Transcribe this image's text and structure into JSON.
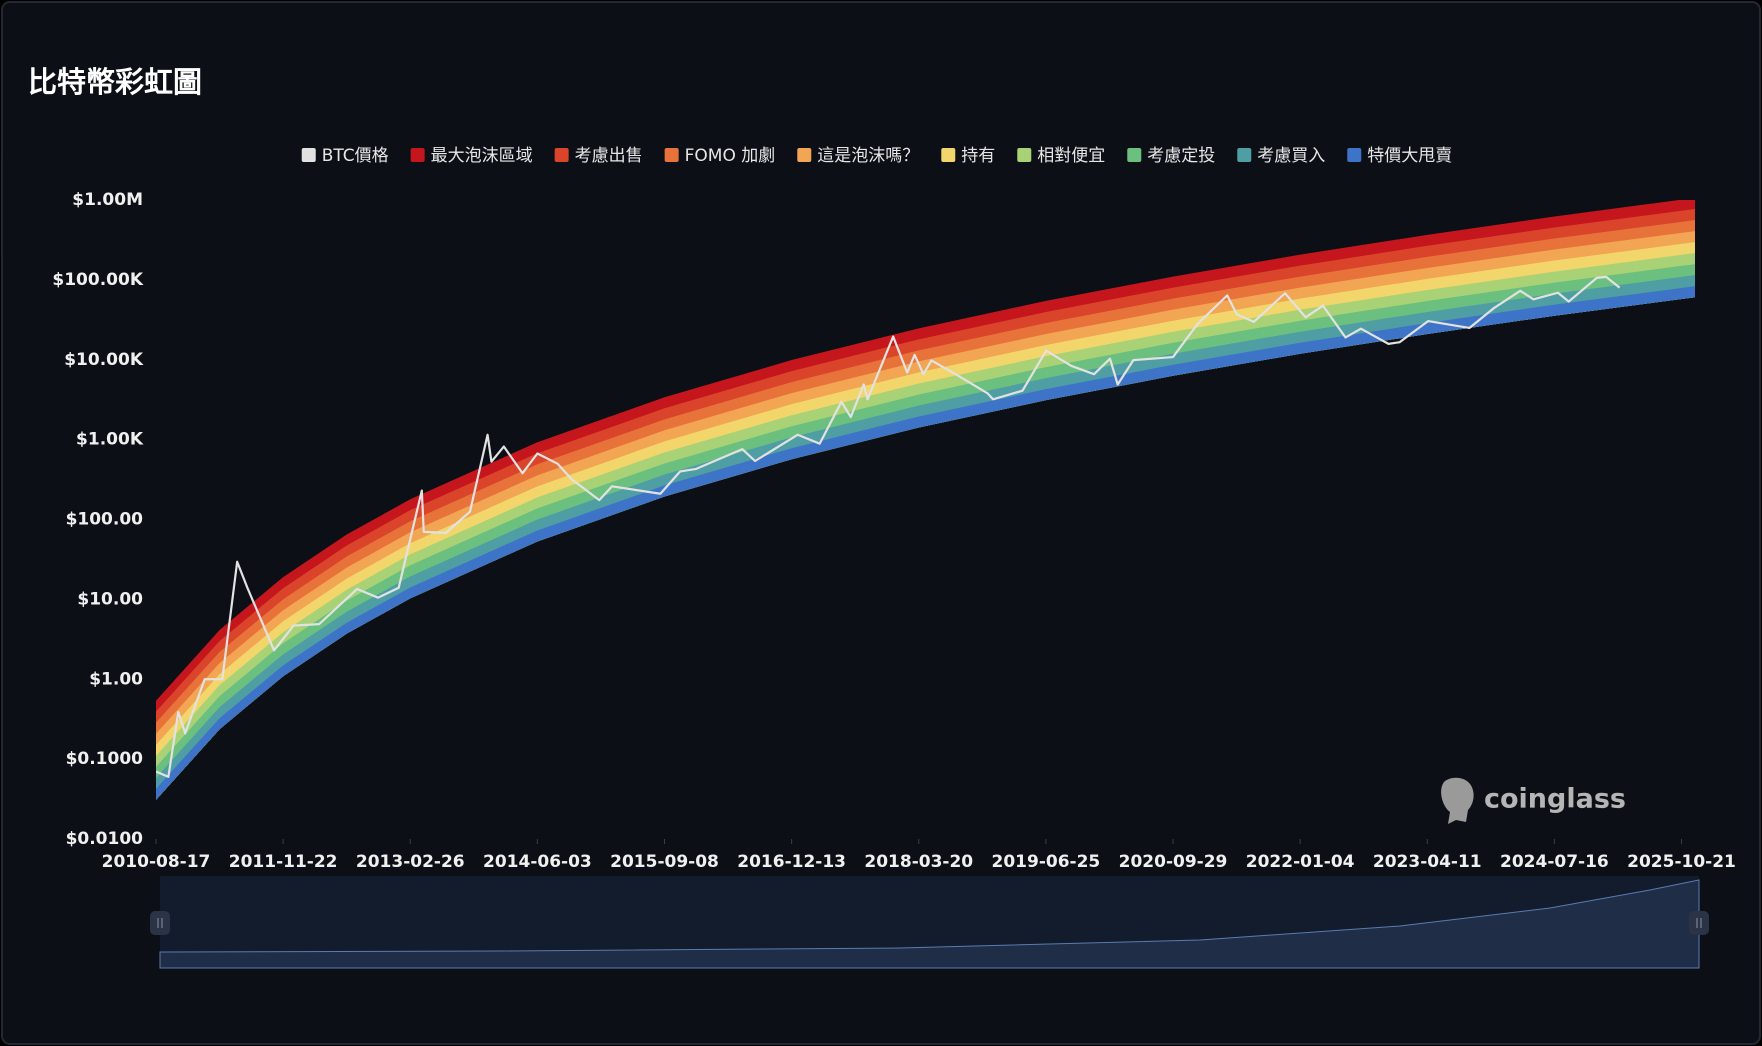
{
  "chart_data": {
    "type": "rainbow",
    "title": "比特幣彩虹圖",
    "watermark": "coinglass",
    "log_y": true,
    "grid": false,
    "legend": "top",
    "xlim": [
      "2010-08-17",
      "2025-12-09"
    ],
    "xticks": [
      "2010-08-17",
      "2011-11-22",
      "2013-02-26",
      "2014-06-03",
      "2015-09-08",
      "2016-12-13",
      "2018-03-20",
      "2019-06-25",
      "2020-09-29",
      "2022-01-04",
      "2023-04-11",
      "2024-07-16",
      "2025-10-21"
    ],
    "ylim": [
      0.01,
      1000000
    ],
    "yticks": [
      {
        "value": 1000000,
        "label": "$1.00M"
      },
      {
        "value": 100000,
        "label": "$100.00K"
      },
      {
        "value": 10000,
        "label": "$10.00K"
      },
      {
        "value": 1000,
        "label": "$1.00K"
      },
      {
        "value": 100,
        "label": "$100.00"
      },
      {
        "value": 10,
        "label": "$10.00"
      },
      {
        "value": 1,
        "label": "$1.00"
      },
      {
        "value": 0.1,
        "label": "$0.1000"
      },
      {
        "value": 0.01,
        "label": "$0.0100"
      }
    ],
    "x": [
      "2010-08-17",
      "2011-04-05",
      "2011-11-22",
      "2012-07-10",
      "2013-02-26",
      "2014-06-03",
      "2015-09-08",
      "2016-12-13",
      "2018-03-20",
      "2019-06-25",
      "2020-09-29",
      "2022-01-04",
      "2023-04-11",
      "2024-07-16",
      "2025-10-21",
      "2025-12-09"
    ],
    "series": [
      {
        "name": "BTC價格",
        "color": "#e2e2e2",
        "kind": "line",
        "x": [
          "2010-08-17",
          "2010-10-01",
          "2010-11-06",
          "2010-12-01",
          "2011-02-10",
          "2011-04-15",
          "2011-06-08",
          "2011-07-15",
          "2011-10-20",
          "2011-12-30",
          "2012-04-01",
          "2012-08-17",
          "2012-11-01",
          "2013-01-15",
          "2013-04-09",
          "2013-04-16",
          "2013-07-05",
          "2013-10-01",
          "2013-12-04",
          "2013-12-18",
          "2014-02-01",
          "2014-04-10",
          "2014-06-03",
          "2014-08-15",
          "2014-10-05",
          "2015-01-14",
          "2015-03-01",
          "2015-08-24",
          "2015-11-04",
          "2016-01-01",
          "2016-06-17",
          "2016-08-02",
          "2017-01-04",
          "2017-03-25",
          "2017-06-12",
          "2017-07-16",
          "2017-09-01",
          "2017-09-15",
          "2017-12-17",
          "2018-02-06",
          "2018-03-05",
          "2018-04-06",
          "2018-05-05",
          "2018-08-14",
          "2018-11-25",
          "2018-12-15",
          "2019-04-01",
          "2019-06-26",
          "2019-09-25",
          "2019-12-17",
          "2020-02-13",
          "2020-03-12",
          "2020-05-08",
          "2020-09-29",
          "2020-12-27",
          "2021-04-14",
          "2021-05-19",
          "2021-07-20",
          "2021-11-10",
          "2022-01-24",
          "2022-03-28",
          "2022-06-18",
          "2022-08-13",
          "2022-11-21",
          "2023-01-01",
          "2023-04-14",
          "2023-09-11",
          "2023-12-08",
          "2024-03-14",
          "2024-05-01",
          "2024-07-29",
          "2024-09-06",
          "2024-12-17",
          "2025-01-20",
          "2025-03-10"
        ],
        "values": [
          0.07,
          0.06,
          0.39,
          0.21,
          1.0,
          1.0,
          29.6,
          14,
          2.3,
          4.7,
          4.9,
          13.5,
          10.5,
          14,
          230,
          70,
          68,
          125,
          1150,
          530,
          820,
          380,
          670,
          500,
          320,
          175,
          260,
          210,
          400,
          430,
          760,
          540,
          1150,
          890,
          2980,
          1920,
          4900,
          3200,
          19500,
          6900,
          11500,
          6600,
          9800,
          6200,
          3800,
          3200,
          4100,
          13000,
          8400,
          6600,
          10300,
          4900,
          9900,
          10800,
          28000,
          64000,
          37000,
          29800,
          68000,
          34000,
          47500,
          19000,
          24500,
          15800,
          16600,
          30500,
          25000,
          44000,
          73000,
          57000,
          69000,
          53500,
          106000,
          109000,
          80000
        ]
      },
      {
        "name": "最大泡沫區域",
        "color": "#c4161c",
        "kind": "band",
        "values": [
          0.539,
          4.13,
          19.0,
          64.9,
          179,
          927,
          3390,
          9910,
          24700,
          54500,
          110000,
          207000,
          366000,
          622000,
          1010000,
          1060000
        ]
      },
      {
        "name": "考慮出售",
        "color": "#d9442b",
        "kind": "band",
        "values": [
          0.393,
          3.01,
          13.8,
          47.2,
          131,
          675,
          2470,
          7210,
          18000,
          39600,
          80000,
          151000,
          267000,
          453000,
          733000,
          771000
        ]
      },
      {
        "name": "FOMO 加劇",
        "color": "#e8733a",
        "kind": "band",
        "values": [
          0.286,
          2.19,
          10.0,
          34.4,
          95.1,
          491,
          1790,
          5250,
          13100,
          28800,
          58200,
          110000,
          194000,
          330000,
          533000,
          561000
        ]
      },
      {
        "name": "這是泡沫嗎？",
        "color": "#f2a552",
        "kind": "band",
        "values": [
          0.208,
          1.59,
          7.31,
          25.0,
          69.2,
          357,
          1310,
          3820,
          9530,
          21000,
          42400,
          80000,
          141000,
          240000,
          388000,
          408000
        ]
      },
      {
        "name": "持有",
        "color": "#f3d66b",
        "kind": "band",
        "values": [
          0.151,
          1.16,
          5.32,
          18.2,
          50.4,
          260,
          951,
          2780,
          6940,
          15300,
          30800,
          58200,
          103000,
          175000,
          282000,
          297000
        ]
      },
      {
        "name": "相對便宜",
        "color": "#a9d276",
        "kind": "band",
        "values": [
          0.11,
          0.843,
          3.87,
          13.2,
          36.6,
          189,
          692,
          2020,
          5050,
          11100,
          22400,
          42400,
          74800,
          127000,
          206000,
          216000
        ]
      },
      {
        "name": "考慮定投",
        "color": "#6cc07f",
        "kind": "band",
        "values": [
          0.0802,
          0.614,
          2.82,
          9.64,
          26.7,
          138,
          503,
          1470,
          3670,
          8090,
          16300,
          30800,
          54400,
          92500,
          150000,
          157000
        ]
      },
      {
        "name": "考慮買入",
        "color": "#4f9ea4",
        "kind": "band",
        "values": [
          0.0583,
          0.447,
          2.05,
          7.01,
          19.4,
          100,
          366,
          1070,
          2670,
          5890,
          11900,
          22400,
          39600,
          67300,
          109000,
          115000
        ]
      },
      {
        "name": "特價大甩賣",
        "color": "#3d74c7",
        "kind": "band",
        "values": [
          0.0425,
          0.325,
          1.49,
          5.1,
          14.1,
          72.9,
          267,
          780,
          1950,
          4290,
          8650,
          16300,
          28800,
          49000,
          79200,
          83400
        ],
        "lower": [
          0.0309,
          0.237,
          1.09,
          3.72,
          10.3,
          53.1,
          194,
          568,
          1420,
          3120,
          6300,
          11900,
          21000,
          35600,
          57700,
          60700
        ]
      }
    ]
  }
}
